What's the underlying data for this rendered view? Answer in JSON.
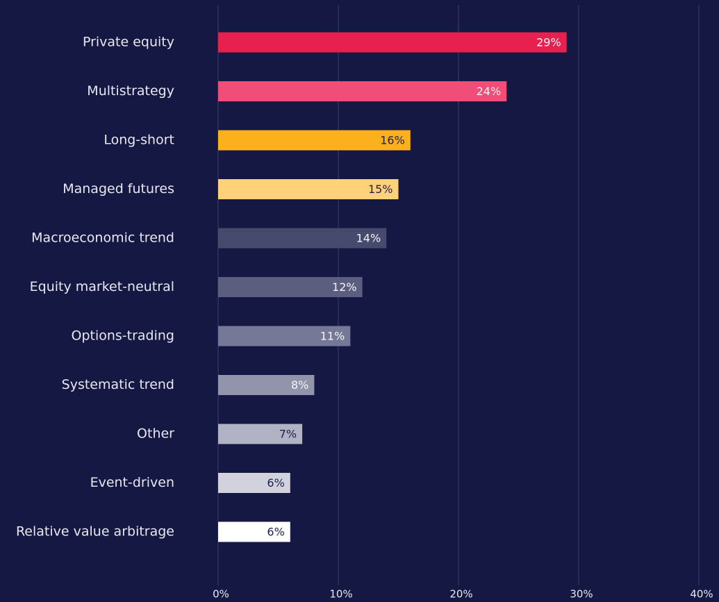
{
  "chart_data": {
    "type": "barh",
    "categories": [
      "Private equity",
      "Multistrategy",
      "Long-short",
      "Managed futures",
      "Macroeconomic trend",
      "Equity market-neutral",
      "Options-trading",
      "Systematic trend",
      "Other",
      "Event-driven",
      "Relative value arbitrage"
    ],
    "values": [
      29,
      24,
      16,
      15,
      14,
      12,
      11,
      8,
      7,
      6,
      6
    ],
    "value_labels": [
      "29%",
      "24%",
      "16%",
      "15%",
      "14%",
      "12%",
      "11%",
      "8%",
      "7%",
      "6%",
      "6%"
    ],
    "colors": [
      "#e8204f",
      "#f04e78",
      "#fbb01c",
      "#ffd27a",
      "#464a6d",
      "#5b5e7f",
      "#757896",
      "#9294ab",
      "#b1b2c3",
      "#d1d2dc",
      "#ffffff"
    ],
    "xlim": [
      0,
      40
    ],
    "xticks": [
      {
        "value": 0,
        "label": "0%"
      },
      {
        "value": 10,
        "label": "10%"
      },
      {
        "value": 20,
        "label": "20%"
      },
      {
        "value": 30,
        "label": "30%"
      },
      {
        "value": 40,
        "label": "40%"
      }
    ],
    "grid": true
  }
}
